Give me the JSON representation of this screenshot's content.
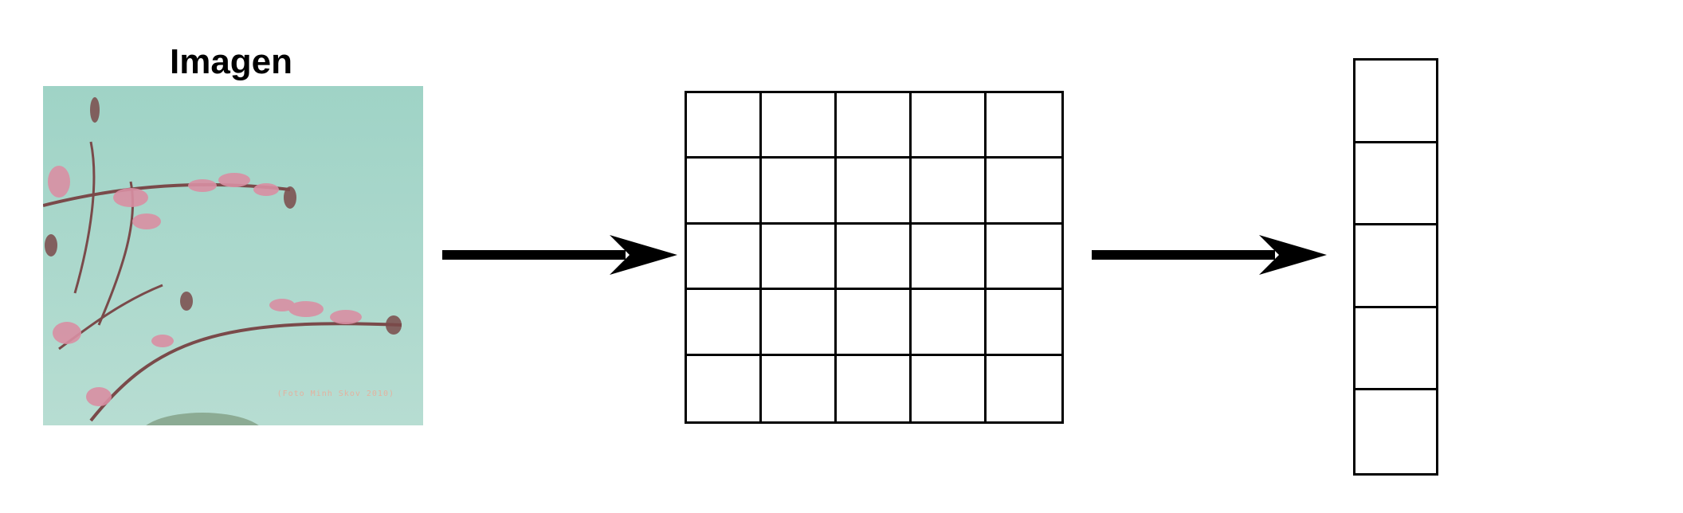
{
  "diagram": {
    "title": "Imagen",
    "photo_credit": "(Foto Minh Skov 2010)",
    "grid": {
      "rows": 5,
      "cols": 5
    },
    "vector": {
      "cells": 5
    }
  },
  "colors": {
    "sky": "#a9d8cc",
    "flower": "#d98fa3",
    "stem": "#7a4a4a",
    "lines": "#000000"
  }
}
